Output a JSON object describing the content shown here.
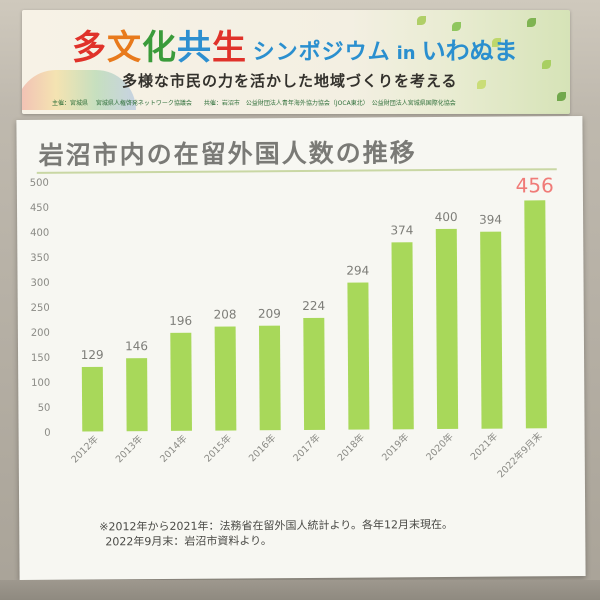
{
  "banner": {
    "title_main": [
      "多",
      "文",
      "化",
      "共",
      "生"
    ],
    "title_katakana": "シンポジウム",
    "title_in": "in",
    "title_place": "いわぬま",
    "subtitle": "多様な市民の力を活かした地域づくりを考える",
    "credits": "主催：宮城県 　宮城県人権啓発ネットワーク協議会　　共催：岩沼市　公益財団法人青年海外協力協会（JOCA東北）　公益財団法人宮城県国際化協会"
  },
  "chart_data": {
    "type": "bar",
    "title": "岩沼市内の在留外国人数の推移",
    "categories": [
      "2012年",
      "2013年",
      "2014年",
      "2015年",
      "2016年",
      "2017年",
      "2018年",
      "2019年",
      "2020年",
      "2021年",
      "2022年9月末"
    ],
    "values": [
      129,
      146,
      196,
      208,
      209,
      224,
      294,
      374,
      400,
      394,
      456
    ],
    "data_labels": [
      "129",
      "146",
      "196",
      "208",
      "209",
      "224",
      "294",
      "374",
      "400",
      "394",
      "456"
    ],
    "highlight_index": 10,
    "ylim": [
      0,
      500
    ],
    "yticks": [
      0,
      50,
      100,
      150,
      200,
      250,
      300,
      350,
      400,
      450,
      500
    ],
    "ytick_labels": [
      "0",
      "50",
      "100",
      "150",
      "200",
      "250",
      "300",
      "350",
      "400",
      "450",
      "500"
    ],
    "grid": false,
    "legend": "none",
    "bar_color": "#a8d85a",
    "label_color": "#7d7d78",
    "highlight_label_color": "#f07b78",
    "xlabel": "",
    "ylabel": ""
  },
  "footnote": {
    "line1": "※2012年から2021年：法務省在留外国人統計より。各年12月末現在。",
    "line2": "2022年9月末：岩沼市資料より。"
  }
}
